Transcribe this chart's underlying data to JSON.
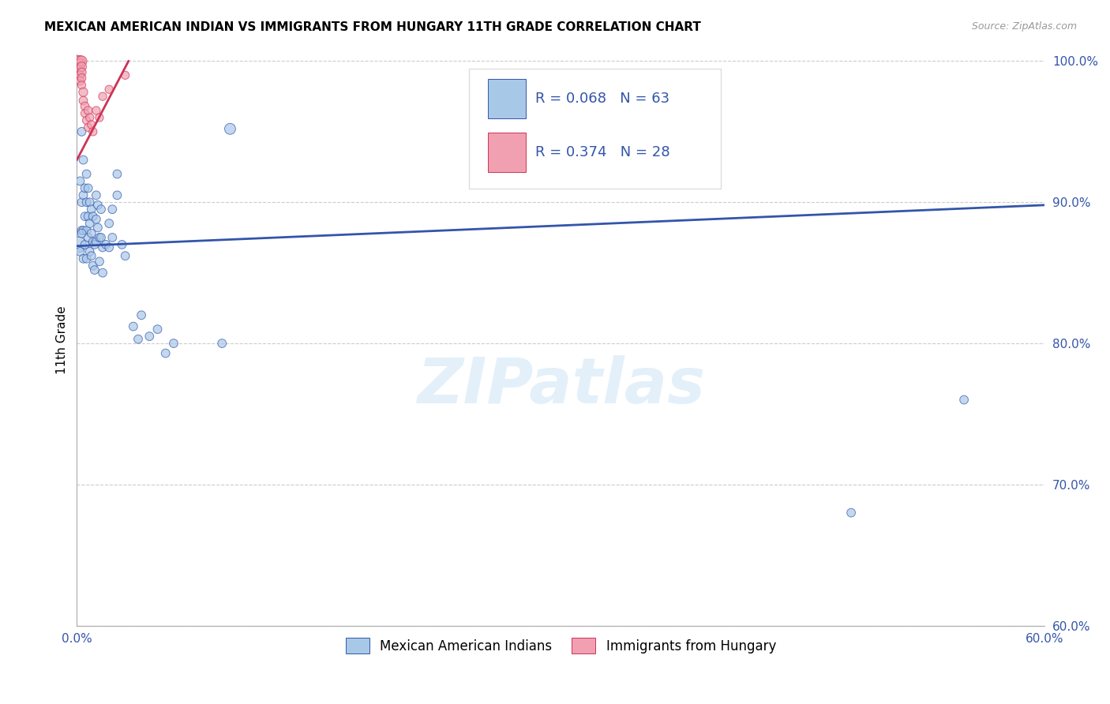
{
  "title": "MEXICAN AMERICAN INDIAN VS IMMIGRANTS FROM HUNGARY 11TH GRADE CORRELATION CHART",
  "source": "Source: ZipAtlas.com",
  "ylabel": "11th Grade",
  "legend_label_1": "Mexican American Indians",
  "legend_label_2": "Immigrants from Hungary",
  "r1": 0.068,
  "n1": 63,
  "r2": 0.374,
  "n2": 28,
  "color1": "#a8c8e8",
  "color2": "#f0a0b0",
  "line_color1": "#3355aa",
  "line_color2": "#cc3355",
  "background_color": "#ffffff",
  "grid_color": "#cccccc",
  "xlim": [
    0.0,
    0.6
  ],
  "ylim": [
    0.6,
    1.005
  ],
  "x_ticks": [
    0.0,
    0.1,
    0.2,
    0.3,
    0.4,
    0.5,
    0.6
  ],
  "x_tick_labels": [
    "0.0%",
    "",
    "",
    "",
    "",
    "",
    "60.0%"
  ],
  "y_ticks": [
    0.6,
    0.7,
    0.8,
    0.9,
    1.0
  ],
  "y_tick_labels": [
    "60.0%",
    "70.0%",
    "80.0%",
    "90.0%",
    "100.0%"
  ],
  "blue_line": [
    0.0,
    0.6,
    0.869,
    0.898
  ],
  "pink_line": [
    0.0,
    0.032,
    0.93,
    1.0
  ],
  "blue_points": [
    [
      0.001,
      0.87
    ],
    [
      0.002,
      0.915
    ],
    [
      0.002,
      0.865
    ],
    [
      0.003,
      0.95
    ],
    [
      0.003,
      0.9
    ],
    [
      0.003,
      0.88
    ],
    [
      0.004,
      0.93
    ],
    [
      0.004,
      0.905
    ],
    [
      0.004,
      0.88
    ],
    [
      0.004,
      0.86
    ],
    [
      0.005,
      0.91
    ],
    [
      0.005,
      0.89
    ],
    [
      0.005,
      0.87
    ],
    [
      0.006,
      0.92
    ],
    [
      0.006,
      0.9
    ],
    [
      0.006,
      0.88
    ],
    [
      0.006,
      0.86
    ],
    [
      0.007,
      0.91
    ],
    [
      0.007,
      0.89
    ],
    [
      0.007,
      0.875
    ],
    [
      0.008,
      0.9
    ],
    [
      0.008,
      0.885
    ],
    [
      0.008,
      0.865
    ],
    [
      0.009,
      0.895
    ],
    [
      0.009,
      0.878
    ],
    [
      0.009,
      0.862
    ],
    [
      0.01,
      0.89
    ],
    [
      0.01,
      0.872
    ],
    [
      0.01,
      0.855
    ],
    [
      0.011,
      0.87
    ],
    [
      0.011,
      0.852
    ],
    [
      0.012,
      0.905
    ],
    [
      0.012,
      0.888
    ],
    [
      0.012,
      0.872
    ],
    [
      0.013,
      0.898
    ],
    [
      0.013,
      0.882
    ],
    [
      0.014,
      0.875
    ],
    [
      0.014,
      0.858
    ],
    [
      0.015,
      0.895
    ],
    [
      0.015,
      0.875
    ],
    [
      0.016,
      0.868
    ],
    [
      0.016,
      0.85
    ],
    [
      0.018,
      0.87
    ],
    [
      0.02,
      0.885
    ],
    [
      0.02,
      0.868
    ],
    [
      0.022,
      0.895
    ],
    [
      0.022,
      0.875
    ],
    [
      0.025,
      0.92
    ],
    [
      0.025,
      0.905
    ],
    [
      0.028,
      0.87
    ],
    [
      0.03,
      0.862
    ],
    [
      0.035,
      0.812
    ],
    [
      0.038,
      0.803
    ],
    [
      0.04,
      0.82
    ],
    [
      0.045,
      0.805
    ],
    [
      0.05,
      0.81
    ],
    [
      0.055,
      0.793
    ],
    [
      0.06,
      0.8
    ],
    [
      0.09,
      0.8
    ],
    [
      0.095,
      0.952
    ],
    [
      0.003,
      0.878
    ],
    [
      0.48,
      0.68
    ],
    [
      0.55,
      0.76
    ]
  ],
  "blue_sizes": [
    200,
    60,
    60,
    60,
    60,
    60,
    60,
    60,
    60,
    60,
    60,
    60,
    60,
    60,
    60,
    60,
    60,
    60,
    60,
    60,
    60,
    60,
    60,
    60,
    60,
    60,
    60,
    60,
    60,
    60,
    60,
    60,
    60,
    60,
    60,
    60,
    60,
    60,
    60,
    60,
    60,
    60,
    60,
    60,
    60,
    60,
    60,
    60,
    60,
    60,
    60,
    60,
    60,
    60,
    60,
    60,
    60,
    60,
    60,
    100,
    60,
    60,
    60
  ],
  "pink_points": [
    [
      0.001,
      1.0
    ],
    [
      0.001,
      0.998
    ],
    [
      0.001,
      0.996
    ],
    [
      0.002,
      1.0
    ],
    [
      0.002,
      0.998
    ],
    [
      0.002,
      0.995
    ],
    [
      0.002,
      0.99
    ],
    [
      0.002,
      0.986
    ],
    [
      0.003,
      1.0
    ],
    [
      0.003,
      0.996
    ],
    [
      0.003,
      0.992
    ],
    [
      0.003,
      0.988
    ],
    [
      0.003,
      0.983
    ],
    [
      0.004,
      0.978
    ],
    [
      0.004,
      0.972
    ],
    [
      0.005,
      0.968
    ],
    [
      0.005,
      0.963
    ],
    [
      0.006,
      0.958
    ],
    [
      0.007,
      0.965
    ],
    [
      0.007,
      0.953
    ],
    [
      0.008,
      0.96
    ],
    [
      0.009,
      0.955
    ],
    [
      0.01,
      0.95
    ],
    [
      0.012,
      0.965
    ],
    [
      0.014,
      0.96
    ],
    [
      0.016,
      0.975
    ],
    [
      0.02,
      0.98
    ],
    [
      0.03,
      0.99
    ]
  ],
  "pink_sizes": [
    100,
    80,
    70,
    100,
    85,
    75,
    65,
    60,
    90,
    75,
    65,
    60,
    55,
    65,
    60,
    60,
    55,
    55,
    60,
    55,
    55,
    55,
    55,
    55,
    55,
    55,
    55,
    55
  ]
}
